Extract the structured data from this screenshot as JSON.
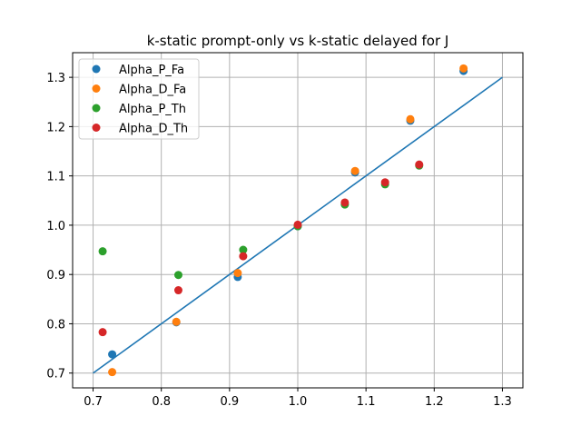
{
  "chart_data": {
    "type": "scatter",
    "title": "k-static prompt-only vs k-static delayed for J",
    "xlabel": "",
    "ylabel": "",
    "xlim": [
      0.67,
      1.33
    ],
    "ylim": [
      0.67,
      1.35
    ],
    "x_ticks": [
      "0.7",
      "0.8",
      "0.9",
      "1.0",
      "1.1",
      "1.2",
      "1.3"
    ],
    "y_ticks": [
      "0.7",
      "0.8",
      "0.9",
      "1.0",
      "1.1",
      "1.2",
      "1.3"
    ],
    "grid": true,
    "legend_position": "upper-left",
    "series": [
      {
        "name": "Alpha_P_Fa",
        "color": "#1f77b4",
        "points": [
          [
            0.728,
            0.738
          ],
          [
            0.822,
            0.803
          ],
          [
            0.912,
            0.895
          ],
          [
            1.0,
            0.998
          ],
          [
            1.084,
            1.107
          ],
          [
            1.165,
            1.212
          ],
          [
            1.243,
            1.313
          ]
        ]
      },
      {
        "name": "Alpha_D_Fa",
        "color": "#ff7f0e",
        "points": [
          [
            0.728,
            0.702
          ],
          [
            0.822,
            0.804
          ],
          [
            0.912,
            0.903
          ],
          [
            1.0,
            0.999
          ],
          [
            1.084,
            1.11
          ],
          [
            1.165,
            1.215
          ],
          [
            1.243,
            1.318
          ]
        ]
      },
      {
        "name": "Alpha_P_Th",
        "color": "#2ca02c",
        "points": [
          [
            0.714,
            0.947
          ],
          [
            0.825,
            0.899
          ],
          [
            0.92,
            0.95
          ],
          [
            1.0,
            0.998
          ],
          [
            1.069,
            1.042
          ],
          [
            1.128,
            1.083
          ],
          [
            1.178,
            1.121
          ]
        ]
      },
      {
        "name": "Alpha_D_Th",
        "color": "#d62728",
        "points": [
          [
            0.714,
            0.783
          ],
          [
            0.825,
            0.868
          ],
          [
            0.92,
            0.937
          ],
          [
            1.0,
            1.001
          ],
          [
            1.069,
            1.046
          ],
          [
            1.128,
            1.087
          ],
          [
            1.178,
            1.123
          ]
        ]
      }
    ],
    "reference_line": {
      "color": "#1f77b4",
      "points": [
        [
          0.7,
          0.7
        ],
        [
          1.3,
          1.3
        ]
      ]
    }
  }
}
